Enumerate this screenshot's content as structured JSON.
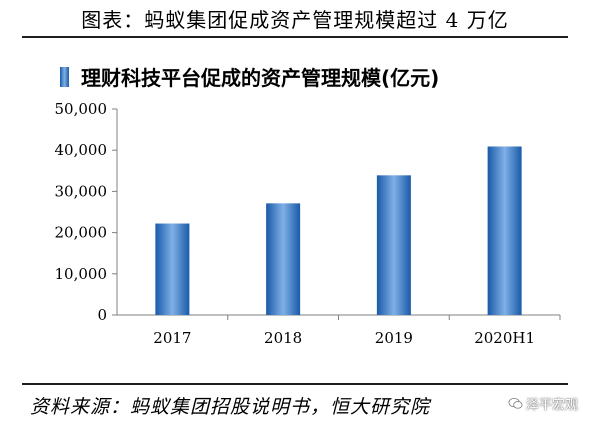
{
  "header": {
    "title": "图表：蚂蚁集团促成资产管理规模超过 4 万亿"
  },
  "footer": {
    "source": "资料来源：蚂蚁集团招股说明书，恒大研究院",
    "watermark": "泽平宏观"
  },
  "chart_data": {
    "type": "bar",
    "categories": [
      "2017",
      "2018",
      "2019",
      "2020H1"
    ],
    "series": [
      {
        "name": "理财科技平台促成的资产管理规模(亿元)",
        "values": [
          22200,
          27100,
          33900,
          40900
        ]
      }
    ],
    "ylim": [
      0,
      50000
    ],
    "yticks": [
      0,
      10000,
      20000,
      30000,
      40000,
      50000
    ],
    "ytick_labels": [
      "0",
      "10,000",
      "20,000",
      "30,000",
      "40,000",
      "50,000"
    ],
    "legend_position": "top-left",
    "grid": false,
    "colors": {
      "bar_dark": "#1a5aa8",
      "bar_light": "#7fb0e6",
      "axis": "#808080"
    }
  }
}
